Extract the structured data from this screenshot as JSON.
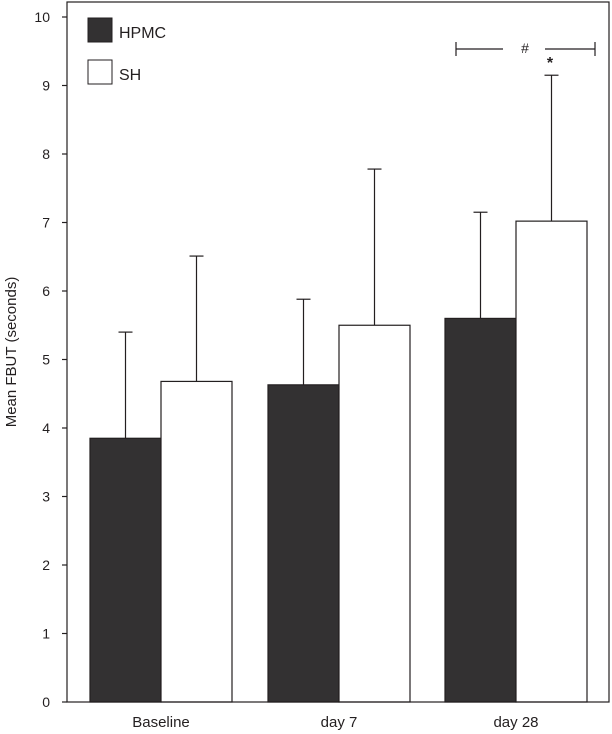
{
  "chart_data": {
    "type": "bar",
    "categories": [
      "Baseline",
      "day 7",
      "day 28"
    ],
    "series": [
      {
        "name": "HPMC",
        "values": [
          3.85,
          4.63,
          5.6
        ],
        "errors": [
          1.55,
          1.25,
          1.55
        ],
        "color": "#333132"
      },
      {
        "name": "SH",
        "values": [
          4.68,
          5.5,
          7.02
        ],
        "errors": [
          1.83,
          2.28,
          2.13
        ],
        "color": "#ffffff"
      }
    ],
    "ylabel": "Mean FBUT (seconds)",
    "xlabel": "",
    "ylim": [
      0,
      10
    ],
    "yticks": [
      "0",
      "1",
      "2",
      "3",
      "4",
      "5",
      "6",
      "7",
      "8",
      "9",
      "10"
    ],
    "legend_position": "top-left",
    "annotations": [
      {
        "text": "#",
        "type": "bracket",
        "category": "day 28",
        "y": 9.55
      },
      {
        "text": "*",
        "type": "marker",
        "category": "day 28",
        "series": "SH",
        "y": 9.35
      }
    ]
  }
}
